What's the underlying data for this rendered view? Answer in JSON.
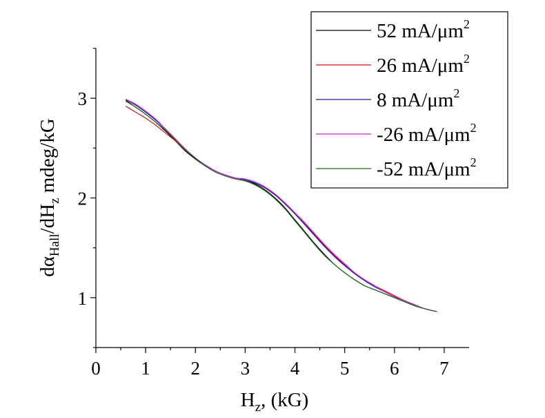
{
  "chart_data": {
    "type": "line",
    "title": "",
    "xlabel": {
      "main": "H",
      "sub": "z",
      "rest": ", (kG)"
    },
    "ylabel": {
      "p1": "dα",
      "s1": "Hall",
      "p2": "/dH",
      "s2": "z",
      "p3": " mdeg/kG"
    },
    "xlim": [
      0,
      7.5
    ],
    "ylim": [
      0.5,
      3.5
    ],
    "xticks": [
      0,
      1,
      2,
      3,
      4,
      5,
      6,
      7
    ],
    "yticks": [
      1,
      2,
      3
    ],
    "grid": false,
    "legend_position": "top-right",
    "series": [
      {
        "name": "52 mA/μm",
        "superscript": "2",
        "color": "#000000",
        "x": [
          0.6,
          0.8,
          1.0,
          1.2,
          1.4,
          1.6,
          1.8,
          2.0,
          2.2,
          2.4,
          2.6,
          2.8,
          3.0,
          3.2,
          3.4,
          3.6,
          3.8,
          4.0,
          4.2,
          4.4,
          4.6,
          4.8,
          5.0,
          5.2,
          5.4,
          5.6,
          5.8,
          6.0,
          6.2,
          6.4,
          6.6,
          6.85
        ],
        "y": [
          2.98,
          2.91,
          2.84,
          2.76,
          2.67,
          2.57,
          2.47,
          2.39,
          2.32,
          2.27,
          2.23,
          2.2,
          2.18,
          2.14,
          2.08,
          2.0,
          1.9,
          1.78,
          1.66,
          1.54,
          1.43,
          1.33,
          1.25,
          1.18,
          1.12,
          1.08,
          1.04,
          1.0,
          0.96,
          0.92,
          0.89,
          0.86
        ]
      },
      {
        "name": "26 mA/μm",
        "superscript": "2",
        "color": "#d0141e",
        "x": [
          0.6,
          0.8,
          1.0,
          1.2,
          1.4,
          1.6,
          1.8,
          2.0,
          2.2,
          2.4,
          2.6,
          2.8,
          3.0,
          3.2,
          3.4,
          3.6,
          3.8,
          4.0,
          4.2,
          4.4,
          4.6,
          4.8,
          5.0,
          5.2,
          5.4,
          5.6,
          5.8,
          6.0,
          6.2,
          6.4,
          6.6,
          6.85
        ],
        "y": [
          2.92,
          2.86,
          2.8,
          2.73,
          2.65,
          2.57,
          2.48,
          2.4,
          2.33,
          2.27,
          2.23,
          2.2,
          2.18,
          2.15,
          2.1,
          2.03,
          1.95,
          1.85,
          1.74,
          1.63,
          1.52,
          1.42,
          1.33,
          1.25,
          1.18,
          1.12,
          1.07,
          1.02,
          0.97,
          0.93,
          0.89,
          0.86
        ]
      },
      {
        "name": "8 mA/μm",
        "superscript": "2",
        "color": "#1a1a9e",
        "x": [
          0.6,
          0.8,
          1.0,
          1.2,
          1.4,
          1.6,
          1.8,
          2.0,
          2.2,
          2.4,
          2.6,
          2.8,
          3.0,
          3.2,
          3.4,
          3.6,
          3.8,
          4.0,
          4.2,
          4.4,
          4.6,
          4.8,
          5.0,
          5.2,
          5.4,
          5.6,
          5.8,
          6.0,
          6.2,
          6.4,
          6.6,
          6.85
        ],
        "y": [
          2.99,
          2.93,
          2.86,
          2.78,
          2.69,
          2.59,
          2.49,
          2.4,
          2.33,
          2.27,
          2.23,
          2.2,
          2.18,
          2.15,
          2.1,
          2.03,
          1.94,
          1.84,
          1.73,
          1.62,
          1.51,
          1.41,
          1.32,
          1.24,
          1.17,
          1.11,
          1.06,
          1.01,
          0.97,
          0.93,
          0.89,
          0.86
        ]
      },
      {
        "name": "-26 mA/μm",
        "superscript": "2",
        "color": "#cc20cc",
        "x": [
          0.6,
          0.8,
          1.0,
          1.2,
          1.4,
          1.6,
          1.8,
          2.0,
          2.2,
          2.4,
          2.6,
          2.8,
          3.0,
          3.2,
          3.4,
          3.6,
          3.8,
          4.0,
          4.2,
          4.4,
          4.6,
          4.8,
          5.0,
          5.2,
          5.4,
          5.6,
          5.8,
          6.0,
          6.2,
          6.4,
          6.6,
          6.85
        ],
        "y": [
          2.99,
          2.94,
          2.87,
          2.79,
          2.69,
          2.59,
          2.49,
          2.4,
          2.33,
          2.27,
          2.23,
          2.2,
          2.19,
          2.16,
          2.11,
          2.04,
          1.95,
          1.85,
          1.75,
          1.64,
          1.53,
          1.43,
          1.34,
          1.25,
          1.18,
          1.12,
          1.06,
          1.01,
          0.97,
          0.93,
          0.89,
          0.86
        ]
      },
      {
        "name": "-52 mA/μm",
        "superscript": "2",
        "color": "#1e6e1e",
        "x": [
          0.6,
          0.8,
          1.0,
          1.2,
          1.4,
          1.6,
          1.8,
          2.0,
          2.2,
          2.4,
          2.6,
          2.8,
          3.0,
          3.2,
          3.4,
          3.6,
          3.8,
          4.0,
          4.2,
          4.4,
          4.6,
          4.8,
          5.0,
          5.2,
          5.4,
          5.6,
          5.8,
          6.0,
          6.2,
          6.4,
          6.6,
          6.85
        ],
        "y": [
          2.97,
          2.91,
          2.84,
          2.76,
          2.68,
          2.58,
          2.48,
          2.4,
          2.32,
          2.26,
          2.22,
          2.19,
          2.17,
          2.13,
          2.07,
          1.99,
          1.89,
          1.77,
          1.65,
          1.53,
          1.42,
          1.33,
          1.25,
          1.18,
          1.12,
          1.08,
          1.04,
          1.0,
          0.96,
          0.92,
          0.89,
          0.86
        ]
      }
    ]
  }
}
